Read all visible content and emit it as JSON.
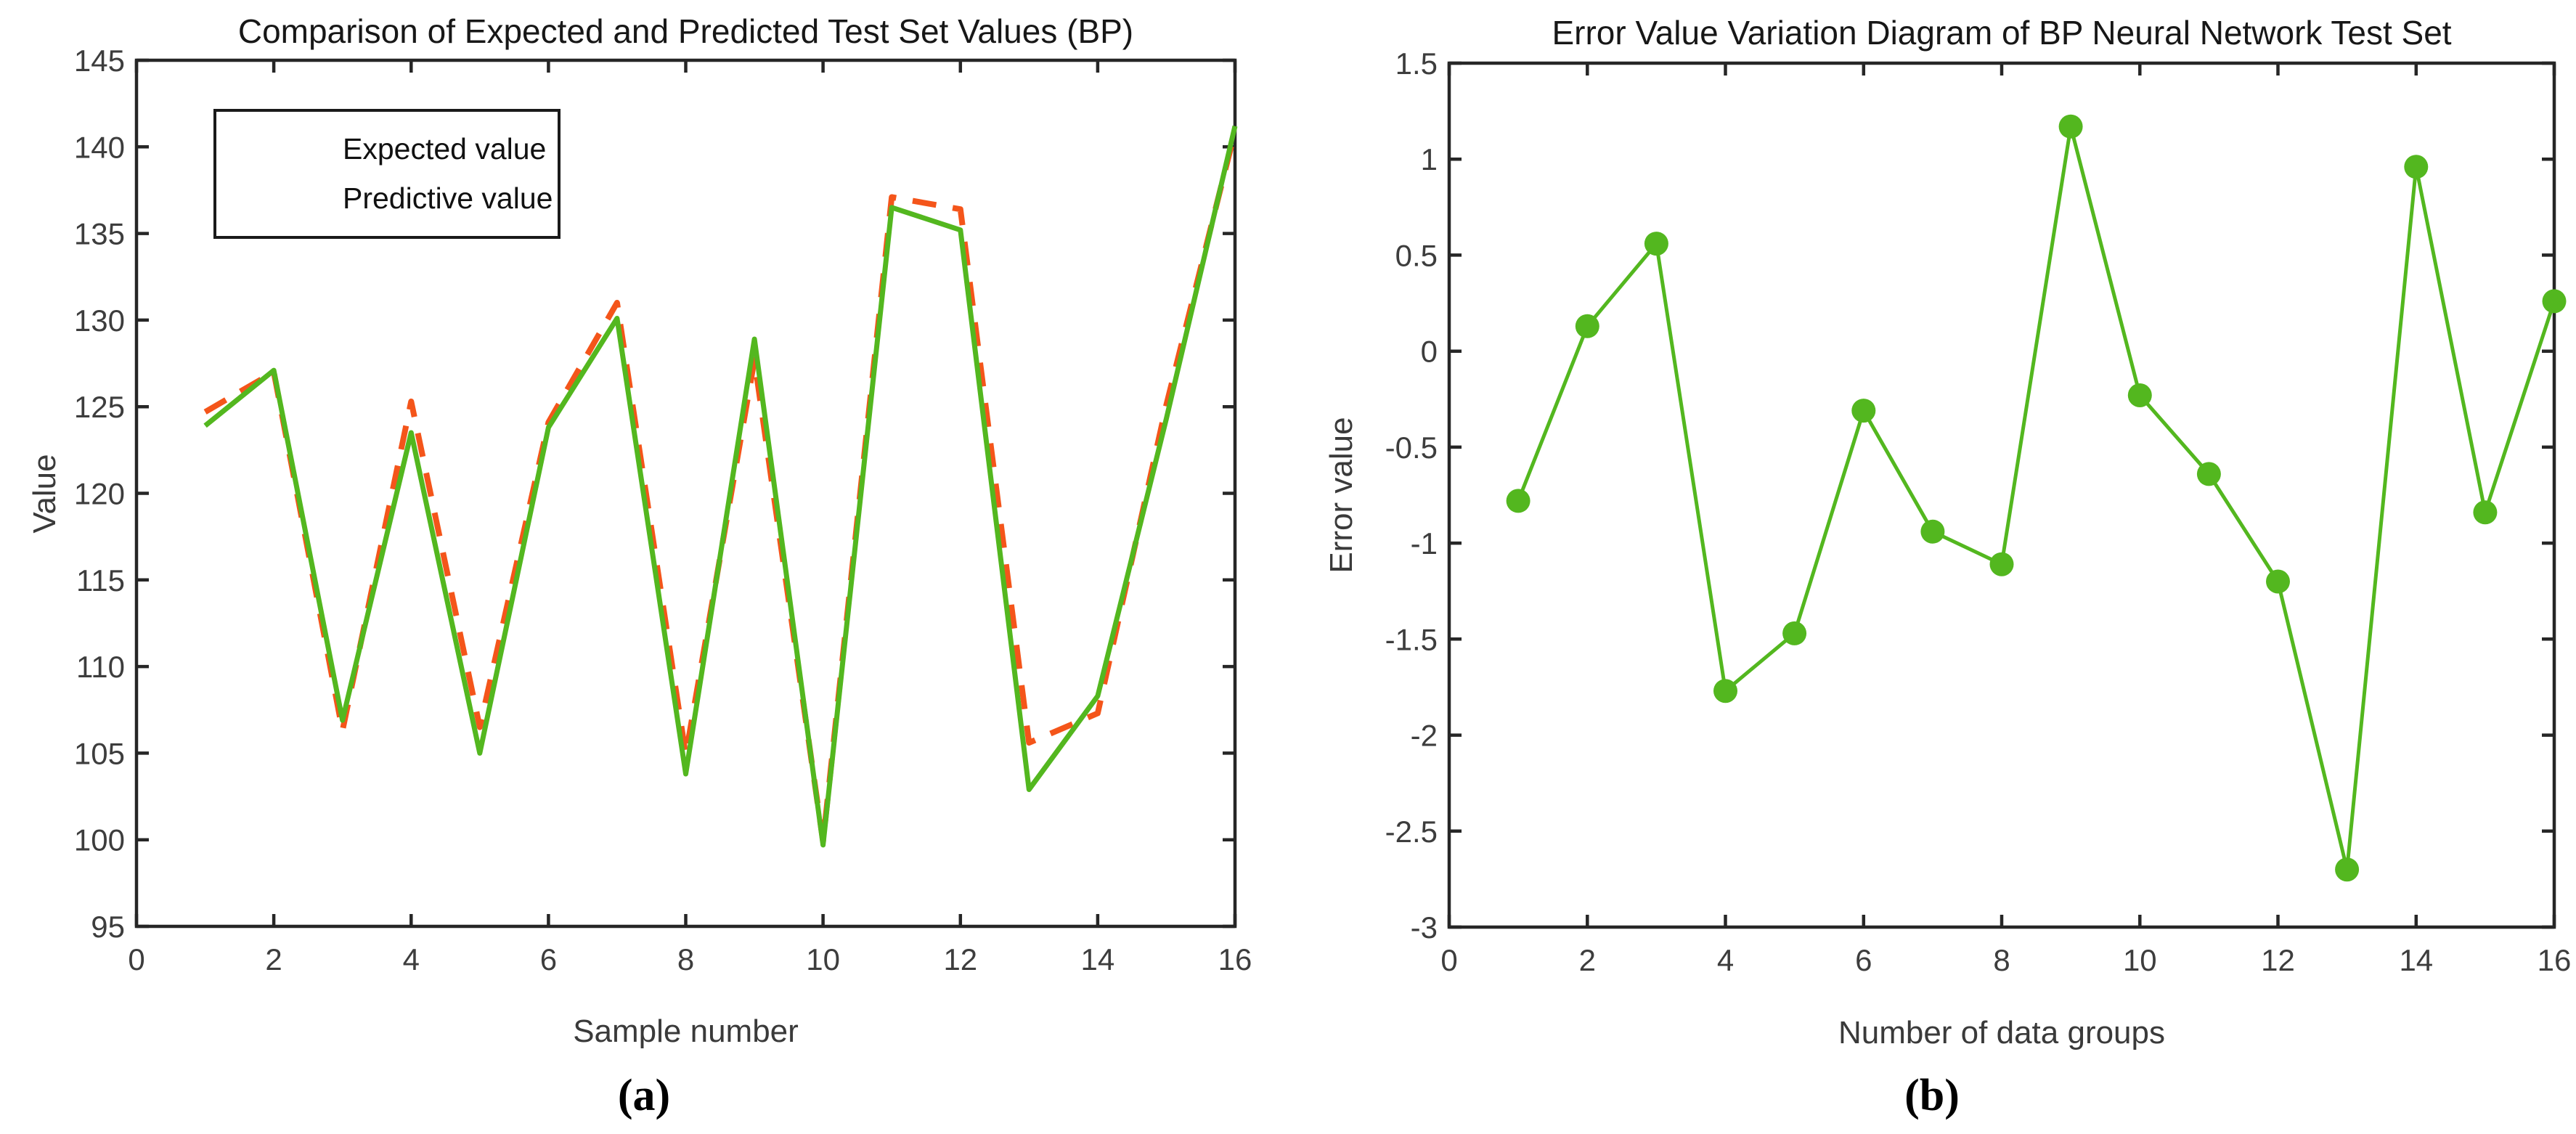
{
  "figure": {
    "panel_a_label": "(a)",
    "panel_b_label": "(b)"
  },
  "colors": {
    "expected_orange": "#F4551A",
    "predicted_green": "#53B71F",
    "axis_line": "#262626",
    "tick_text": "#3d3d3d"
  },
  "chart_data": [
    {
      "type": "line",
      "title": "Comparison of Expected and Predicted Test Set Values (BP)",
      "xlabel": "Sample number",
      "ylabel": "Value",
      "xlim": [
        0,
        16
      ],
      "ylim": [
        95,
        145
      ],
      "xticks": [
        0,
        2,
        4,
        6,
        8,
        10,
        12,
        14,
        16
      ],
      "xticklabels": [
        "0",
        "2",
        "4",
        "6",
        "8",
        "10",
        "12",
        "14",
        "16"
      ],
      "yticks": [
        95,
        100,
        105,
        110,
        115,
        120,
        125,
        130,
        135,
        140,
        145
      ],
      "yticklabels": [
        "95",
        "100",
        "105",
        "110",
        "115",
        "120",
        "125",
        "130",
        "135",
        "140",
        "145"
      ],
      "grid": false,
      "legend_position": "top-left",
      "x": [
        1,
        2,
        3,
        4,
        5,
        6,
        7,
        8,
        9,
        10,
        11,
        12,
        13,
        14,
        15,
        16
      ],
      "series": [
        {
          "name": "Expected value",
          "style": "dashed",
          "color": "#F4551A",
          "values": [
            124.7,
            127.0,
            106.3,
            125.3,
            106.5,
            124.1,
            131.0,
            104.9,
            127.7,
            99.9,
            137.1,
            136.4,
            105.6,
            107.3,
            125.1,
            140.9
          ]
        },
        {
          "name": "Predictive value",
          "style": "solid",
          "color": "#53B71F",
          "values": [
            123.9,
            127.1,
            106.9,
            123.5,
            105.0,
            123.8,
            130.1,
            103.8,
            128.9,
            99.7,
            136.5,
            135.2,
            102.9,
            108.3,
            124.3,
            141.2
          ]
        }
      ]
    },
    {
      "type": "line",
      "title": "Error Value Variation Diagram of BP Neural Network Test Set",
      "xlabel": "Number of data groups",
      "ylabel": "Error value",
      "xlim": [
        0,
        16
      ],
      "ylim": [
        -3,
        1.5
      ],
      "xticks": [
        0,
        2,
        4,
        6,
        8,
        10,
        12,
        14,
        16
      ],
      "xticklabels": [
        "0",
        "2",
        "4",
        "6",
        "8",
        "10",
        "12",
        "14",
        "16"
      ],
      "yticks": [
        1.5,
        1,
        0.5,
        0,
        -0.5,
        -1,
        -1.5,
        -2,
        -2.5,
        -3
      ],
      "yticklabels": [
        "1.5",
        "1",
        "0.5",
        "0",
        "-0.5",
        "-1",
        "-1.5",
        "-2",
        "-2.5",
        "-3"
      ],
      "grid": false,
      "x": [
        1,
        2,
        3,
        4,
        5,
        6,
        7,
        8,
        9,
        10,
        11,
        12,
        13,
        14,
        15,
        16
      ],
      "series": [
        {
          "name": "Error value",
          "style": "solid-markers",
          "marker": "circle",
          "color": "#53B71F",
          "values": [
            -0.78,
            0.13,
            0.56,
            -1.77,
            -1.47,
            -0.31,
            -0.94,
            -1.11,
            1.17,
            -0.23,
            -0.64,
            -1.2,
            -2.7,
            0.96,
            -0.84,
            0.26
          ]
        }
      ]
    }
  ]
}
